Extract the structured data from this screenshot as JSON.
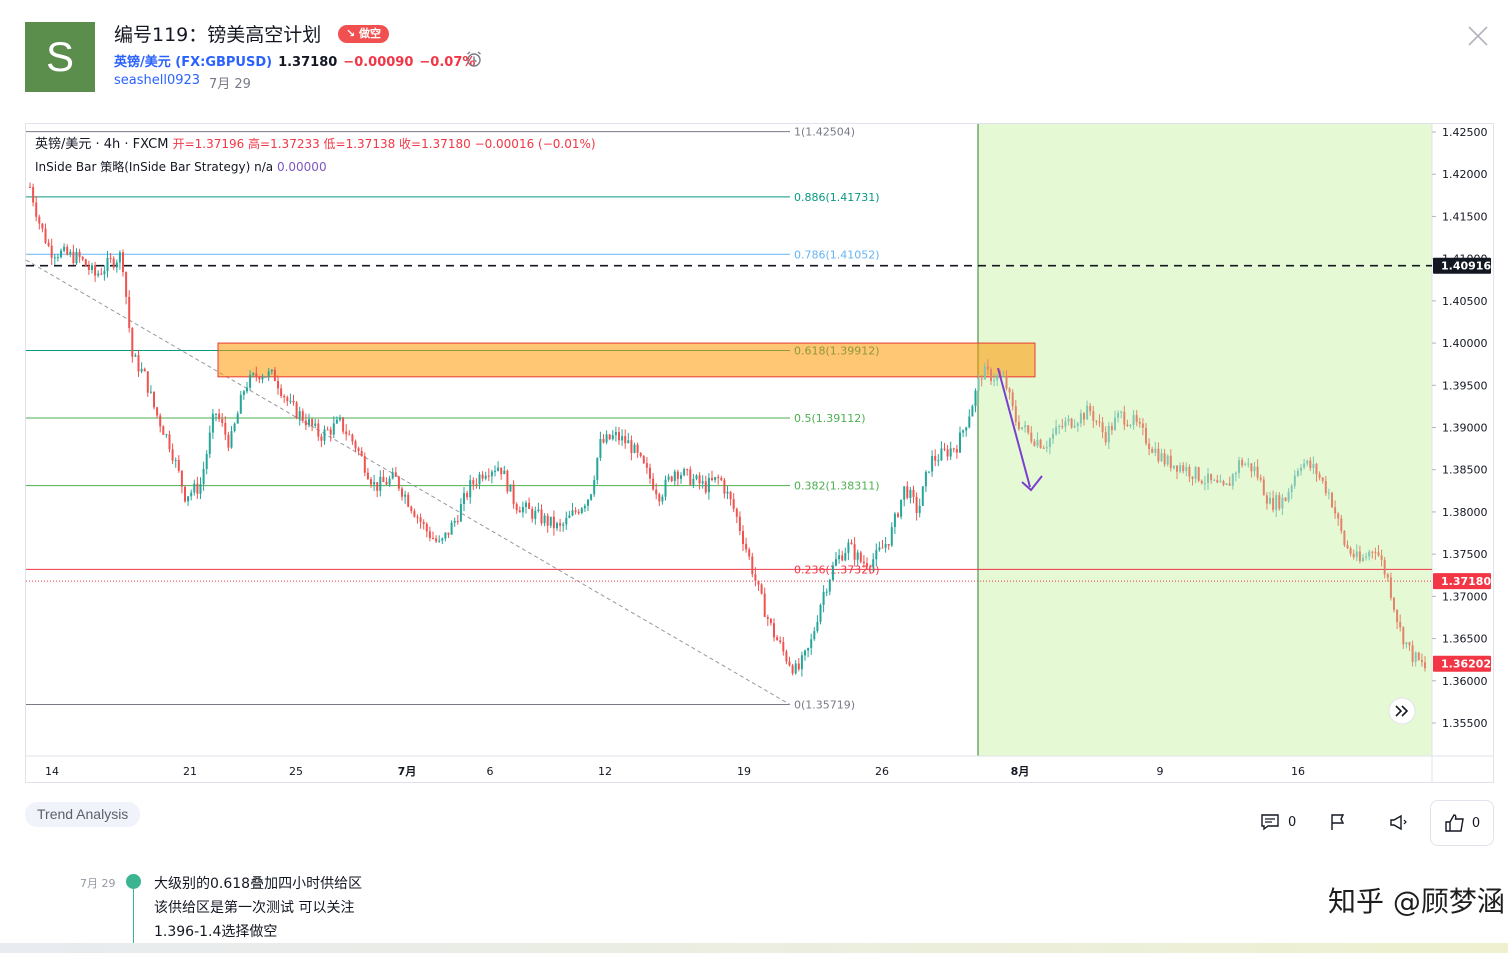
{
  "header": {
    "avatar_letter": "S",
    "title": "编号119：镑美高空计划",
    "badge": "↘ 做空",
    "symbol": "英镑/美元 (FX:GBPUSD)",
    "price": "1.37180",
    "change": "−0.00090",
    "change_pct": "−0.07%",
    "author": "seashell0923",
    "date": "7月 29"
  },
  "legend": {
    "title": "英镑/美元 · 4h · FXCM",
    "ohlc": "开=1.37196 高=1.37233 低=1.37138 收=1.37180 −0.00016 (−0.01%)",
    "indicator": "InSide Bar 策略(InSide Bar Strategy)",
    "indicator_na": "n/a",
    "indicator_value": "0.00000"
  },
  "chart_data": {
    "type": "candlestick",
    "instrument": "FX:GBPUSD",
    "timeframe": "4h",
    "price_axis": [
      "1.42500",
      "1.42000",
      "1.41500",
      "1.41000",
      "1.40500",
      "1.40000",
      "1.39500",
      "1.39000",
      "1.38500",
      "1.38000",
      "1.37500",
      "1.37000",
      "1.36500",
      "1.36000",
      "1.35500"
    ],
    "time_axis": [
      "14",
      "21",
      "25",
      "7月",
      "6",
      "12",
      "19",
      "26",
      "8月",
      "9",
      "16"
    ],
    "fib_levels": [
      {
        "label": "1(1.42504)",
        "value": 1.42504,
        "color": "#787b86"
      },
      {
        "label": "0.886(1.41731)",
        "value": 1.41731,
        "color": "#089981"
      },
      {
        "label": "0.786(1.41052)",
        "value": 1.41052,
        "color": "#64b5f6"
      },
      {
        "label": "0.618(1.39912)",
        "value": 1.39912,
        "color": "#089981"
      },
      {
        "label": "0.5(1.39112)",
        "value": 1.39112,
        "color": "#4caf50"
      },
      {
        "label": "0.382(1.38311)",
        "value": 1.38311,
        "color": "#4caf50"
      },
      {
        "label": "0.236(1.37320)",
        "value": 1.3732,
        "color": "#f23645"
      },
      {
        "label": "0(1.35719)",
        "value": 1.35719,
        "color": "#787b86"
      }
    ],
    "price_labels": [
      {
        "text": "1.40916",
        "value": 1.40916,
        "bg": "#131722"
      },
      {
        "text": "1.37180",
        "value": 1.3718,
        "bg": "#f23645"
      },
      {
        "text": "1.36202",
        "value": 1.36202,
        "bg": "#f23645"
      }
    ],
    "supply_zone": {
      "from": 1.396,
      "to": 1.4,
      "color": "#ff9800"
    },
    "projection_zone_color": "#e6f9d5",
    "up_color": "#26a69a",
    "down_color": "#ef5350",
    "projection_up_color": "#7fc7b3",
    "projection_down_color": "#e2846a"
  },
  "tags": [
    "Trend Analysis"
  ],
  "actions": {
    "comments": "0",
    "likes": "0"
  },
  "timeline": {
    "date": "7月 29",
    "lines": [
      "大级别的0.618叠加四小时供给区",
      "该供给区是第一次测试 可以关注",
      "1.396-1.4选择做空"
    ]
  },
  "watermark": "知乎 @顾梦涵"
}
